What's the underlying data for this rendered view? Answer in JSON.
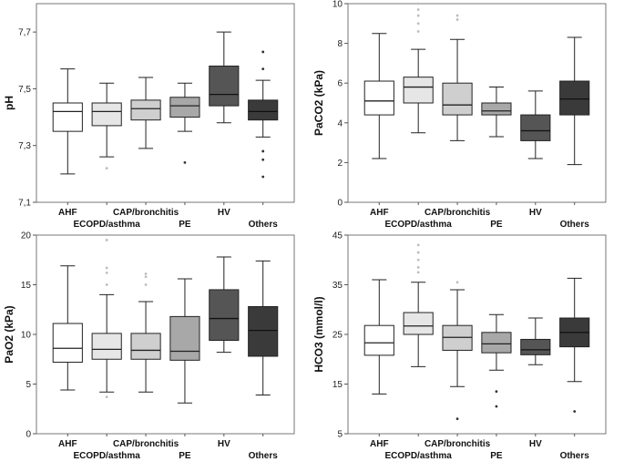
{
  "chart_data": [
    {
      "type": "boxplot",
      "ylabel": "pH",
      "ylim": [
        7.1,
        7.8
      ],
      "yticks": [
        7.1,
        7.3,
        7.5,
        7.7
      ],
      "ytick_labels": [
        "7,1",
        "7,3",
        "7,5",
        "7,7"
      ],
      "categories": [
        "AHF",
        "ECOPD/asthma",
        "CAP/bronchitis",
        "PE",
        "HV",
        "Others"
      ],
      "fills": [
        "#ffffff",
        "#e6e6e6",
        "#cfcfcf",
        "#a8a8a8",
        "#555555",
        "#3a3a3a"
      ],
      "boxes": [
        {
          "whislo": 7.2,
          "q1": 7.35,
          "med": 7.42,
          "q3": 7.45,
          "whishi": 7.57,
          "outliers": []
        },
        {
          "whislo": 7.26,
          "q1": 7.37,
          "med": 7.42,
          "q3": 7.45,
          "whishi": 7.52,
          "outliers": [
            7.22
          ]
        },
        {
          "whislo": 7.29,
          "q1": 7.39,
          "med": 7.43,
          "q3": 7.46,
          "whishi": 7.54,
          "outliers": []
        },
        {
          "whislo": 7.35,
          "q1": 7.4,
          "med": 7.44,
          "q3": 7.47,
          "whishi": 7.52,
          "outliers": [
            7.24
          ]
        },
        {
          "whislo": 7.38,
          "q1": 7.44,
          "med": 7.48,
          "q3": 7.58,
          "whishi": 7.7,
          "outliers": []
        },
        {
          "whislo": 7.33,
          "q1": 7.39,
          "med": 7.42,
          "q3": 7.46,
          "whishi": 7.53,
          "outliers": [
            7.57,
            7.63,
            7.28,
            7.25,
            7.19
          ]
        }
      ]
    },
    {
      "type": "boxplot",
      "ylabel": "PaCO2 (kPa)",
      "ylim": [
        0,
        10
      ],
      "yticks": [
        0,
        2,
        4,
        6,
        8,
        10
      ],
      "ytick_labels": [
        "0",
        "2",
        "4",
        "6",
        "8",
        "10"
      ],
      "categories": [
        "AHF",
        "ECOPD/asthma",
        "CAP/bronchitis",
        "PE",
        "HV",
        "Others"
      ],
      "fills": [
        "#ffffff",
        "#e6e6e6",
        "#cfcfcf",
        "#a8a8a8",
        "#555555",
        "#3a3a3a"
      ],
      "boxes": [
        {
          "whislo": 2.2,
          "q1": 4.4,
          "med": 5.1,
          "q3": 6.1,
          "whishi": 8.5,
          "outliers": []
        },
        {
          "whislo": 3.5,
          "q1": 5.0,
          "med": 5.8,
          "q3": 6.3,
          "whishi": 7.7,
          "outliers": [
            8.6,
            9.0,
            9.4,
            9.7,
            10.0
          ]
        },
        {
          "whislo": 3.1,
          "q1": 4.4,
          "med": 4.9,
          "q3": 6.0,
          "whishi": 8.2,
          "outliers": [
            9.2,
            9.4
          ]
        },
        {
          "whislo": 3.3,
          "q1": 4.4,
          "med": 4.6,
          "q3": 5.0,
          "whishi": 5.8,
          "outliers": []
        },
        {
          "whislo": 2.2,
          "q1": 3.1,
          "med": 3.6,
          "q3": 4.4,
          "whishi": 5.6,
          "outliers": []
        },
        {
          "whislo": 1.9,
          "q1": 4.4,
          "med": 5.2,
          "q3": 6.1,
          "whishi": 8.3,
          "outliers": []
        }
      ]
    },
    {
      "type": "boxplot",
      "ylabel": "PaO2 (kPa)",
      "ylim": [
        0,
        20
      ],
      "yticks": [
        0,
        5,
        10,
        15,
        20
      ],
      "ytick_labels": [
        "0",
        "5",
        "10",
        "15",
        "20"
      ],
      "categories": [
        "AHF",
        "ECOPD/asthma",
        "CAP/bronchitis",
        "PE",
        "HV",
        "Others"
      ],
      "fills": [
        "#ffffff",
        "#e6e6e6",
        "#cfcfcf",
        "#a8a8a8",
        "#555555",
        "#3a3a3a"
      ],
      "boxes": [
        {
          "whislo": 4.4,
          "q1": 7.2,
          "med": 8.6,
          "q3": 11.1,
          "whishi": 16.9,
          "outliers": []
        },
        {
          "whislo": 4.2,
          "q1": 7.5,
          "med": 8.5,
          "q3": 10.1,
          "whishi": 14.0,
          "outliers": [
            3.7,
            15.0,
            16.2,
            16.7,
            19.5
          ]
        },
        {
          "whislo": 4.2,
          "q1": 7.5,
          "med": 8.4,
          "q3": 10.1,
          "whishi": 13.3,
          "outliers": [
            15.0,
            15.8,
            16.1
          ]
        },
        {
          "whislo": 3.1,
          "q1": 7.4,
          "med": 8.3,
          "q3": 11.8,
          "whishi": 15.6,
          "outliers": []
        },
        {
          "whislo": 8.2,
          "q1": 9.4,
          "med": 11.6,
          "q3": 14.5,
          "whishi": 17.8,
          "outliers": []
        },
        {
          "whislo": 3.9,
          "q1": 7.8,
          "med": 10.4,
          "q3": 12.8,
          "whishi": 17.4,
          "outliers": []
        }
      ]
    },
    {
      "type": "boxplot",
      "ylabel": "HCO3 (mmol/l)",
      "ylim": [
        5,
        45
      ],
      "yticks": [
        5,
        15,
        25,
        35,
        45
      ],
      "ytick_labels": [
        "5",
        "15",
        "25",
        "35",
        "45"
      ],
      "categories": [
        "AHF",
        "ECOPD/asthma",
        "CAP/bronchitis",
        "PE",
        "HV",
        "Others"
      ],
      "fills": [
        "#ffffff",
        "#e6e6e6",
        "#cfcfcf",
        "#a8a8a8",
        "#555555",
        "#3a3a3a"
      ],
      "boxes": [
        {
          "whislo": 13.0,
          "q1": 20.8,
          "med": 23.3,
          "q3": 26.8,
          "whishi": 36.0,
          "outliers": []
        },
        {
          "whislo": 18.5,
          "q1": 25.0,
          "med": 26.7,
          "q3": 29.4,
          "whishi": 35.5,
          "outliers": [
            37.5,
            38.5,
            40.0,
            41.5,
            43.0
          ]
        },
        {
          "whislo": 14.5,
          "q1": 21.8,
          "med": 24.4,
          "q3": 26.8,
          "whishi": 34.0,
          "outliers": [
            35.5,
            8.0
          ]
        },
        {
          "whislo": 17.8,
          "q1": 21.3,
          "med": 23.1,
          "q3": 25.4,
          "whishi": 29.0,
          "outliers": [
            13.5,
            10.5
          ]
        },
        {
          "whislo": 18.9,
          "q1": 20.9,
          "med": 21.9,
          "q3": 24.0,
          "whishi": 28.3,
          "outliers": []
        },
        {
          "whislo": 15.5,
          "q1": 22.5,
          "med": 25.4,
          "q3": 28.3,
          "whishi": 36.3,
          "outliers": [
            9.5
          ]
        }
      ]
    }
  ]
}
